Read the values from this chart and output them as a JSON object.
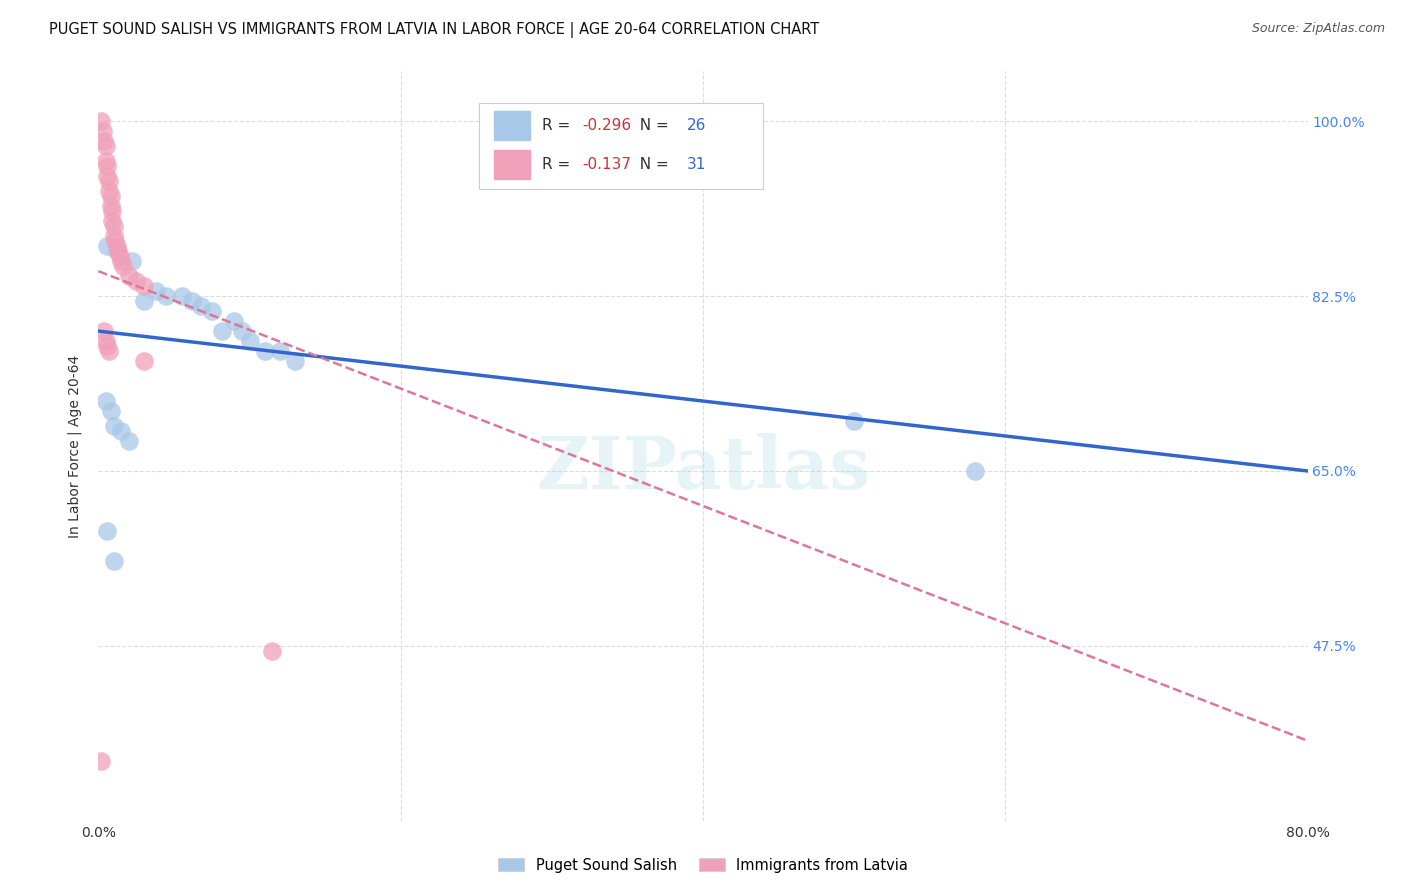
{
  "title": "PUGET SOUND SALISH VS IMMIGRANTS FROM LATVIA IN LABOR FORCE | AGE 20-64 CORRELATION CHART",
  "source": "Source: ZipAtlas.com",
  "ylabel": "In Labor Force | Age 20-64",
  "xlim": [
    0.0,
    0.8
  ],
  "ylim": [
    0.3,
    1.05
  ],
  "yticks": [
    0.475,
    0.65,
    0.825,
    1.0
  ],
  "ytick_labels": [
    "47.5%",
    "65.0%",
    "82.5%",
    "100.0%"
  ],
  "xticks": [
    0.0,
    0.2,
    0.4,
    0.6,
    0.8
  ],
  "xtick_labels": [
    "0.0%",
    "",
    "",
    "",
    "80.0%"
  ],
  "blue_label": "Puget Sound Salish",
  "pink_label": "Immigrants from Latvia",
  "R_blue": -0.296,
  "N_blue": 26,
  "R_pink": -0.137,
  "N_pink": 31,
  "blue_scatter_x": [
    0.006,
    0.012,
    0.022,
    0.03,
    0.038,
    0.045,
    0.055,
    0.062,
    0.068,
    0.075,
    0.082,
    0.09,
    0.095,
    0.1,
    0.11,
    0.12,
    0.13,
    0.005,
    0.008,
    0.01,
    0.015,
    0.02,
    0.5,
    0.58,
    0.006,
    0.01
  ],
  "blue_scatter_y": [
    0.875,
    0.87,
    0.86,
    0.82,
    0.83,
    0.825,
    0.825,
    0.82,
    0.815,
    0.81,
    0.79,
    0.8,
    0.79,
    0.78,
    0.77,
    0.77,
    0.76,
    0.72,
    0.71,
    0.695,
    0.69,
    0.68,
    0.7,
    0.65,
    0.59,
    0.56
  ],
  "pink_scatter_x": [
    0.002,
    0.003,
    0.004,
    0.005,
    0.005,
    0.006,
    0.006,
    0.007,
    0.007,
    0.008,
    0.008,
    0.009,
    0.009,
    0.01,
    0.01,
    0.011,
    0.012,
    0.013,
    0.014,
    0.015,
    0.016,
    0.02,
    0.025,
    0.03,
    0.004,
    0.005,
    0.006,
    0.007,
    0.03,
    0.002,
    0.115
  ],
  "pink_scatter_y": [
    1.0,
    0.99,
    0.98,
    0.975,
    0.96,
    0.955,
    0.945,
    0.94,
    0.93,
    0.925,
    0.915,
    0.91,
    0.9,
    0.895,
    0.885,
    0.88,
    0.875,
    0.87,
    0.865,
    0.86,
    0.855,
    0.845,
    0.84,
    0.835,
    0.79,
    0.78,
    0.775,
    0.77,
    0.76,
    0.36,
    0.47
  ],
  "blue_line_x": [
    0.0,
    0.8
  ],
  "blue_line_y": [
    0.79,
    0.65
  ],
  "pink_line_x": [
    0.0,
    0.8
  ],
  "pink_line_y": [
    0.85,
    0.38
  ],
  "watermark": "ZIPatlas",
  "background_color": "#ffffff",
  "grid_color": "#dddddd",
  "blue_color": "#a8c8e8",
  "pink_color": "#f0a0b8",
  "blue_line_color": "#3366cc",
  "pink_line_color": "#dd7799",
  "title_fontsize": 10.5,
  "axis_label_fontsize": 10,
  "tick_fontsize": 10,
  "right_tick_color": "#4488ee",
  "legend_R_color": "#cc3333",
  "legend_N_color": "#3366cc"
}
